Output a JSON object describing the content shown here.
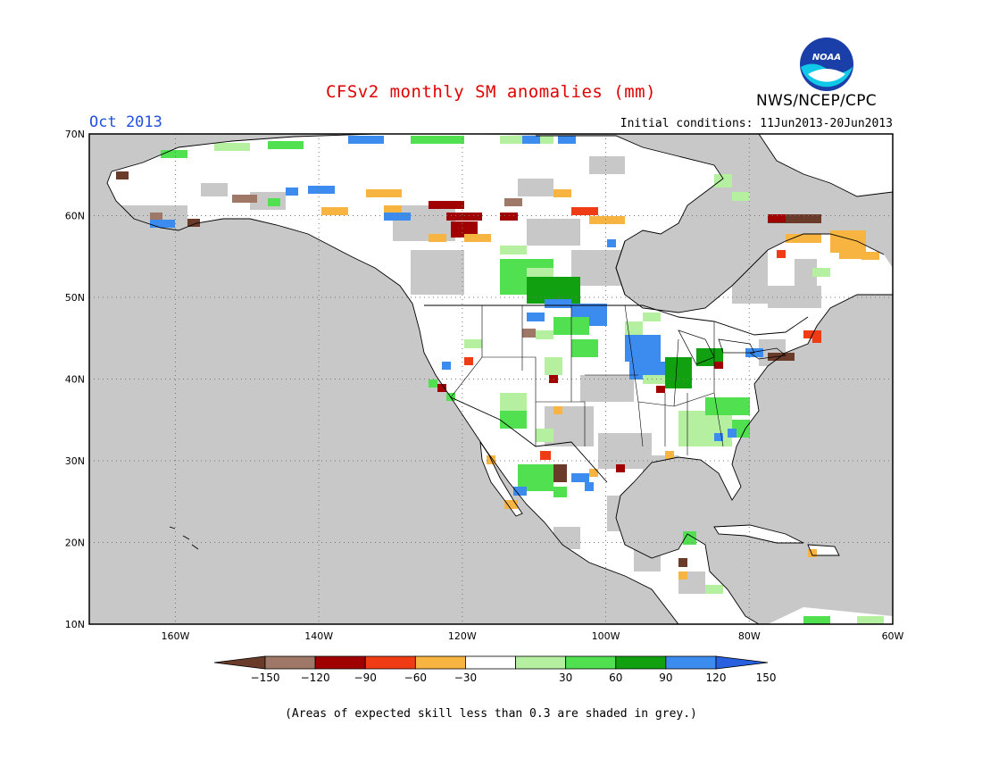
{
  "header": {
    "title": "CFSv2 monthly SM anomalies (mm)",
    "month": "Oct 2013",
    "initial_conditions": "Initial conditions: 11Jun2013-20Jun2013",
    "agency": "NWS/NCEP/CPC",
    "logo_text": "NOAA"
  },
  "map": {
    "lat_labels": [
      "70N",
      "60N",
      "50N",
      "40N",
      "30N",
      "20N",
      "10N"
    ],
    "lon_labels": [
      "160W",
      "140W",
      "120W",
      "100W",
      "80W",
      "60W"
    ],
    "lat_range": [
      10,
      70
    ],
    "lon_range": [
      -172,
      -60
    ],
    "grid": "dotted",
    "colors": {
      "ocean": "#c8c8c8",
      "land": "#ffffff",
      "low_skill": "#c8c8c8"
    }
  },
  "colorbar": {
    "labels": [
      "-150",
      "-120",
      "-90",
      "-60",
      "-30",
      "30",
      "60",
      "90",
      "120",
      "150"
    ],
    "colors": [
      "#6b3b2a",
      "#a07868",
      "#a00000",
      "#f03c14",
      "#f8b440",
      "#ffffff",
      "#b4f0a0",
      "#50e050",
      "#10a010",
      "#3c8cf0",
      "#2860e0"
    ]
  },
  "footnote": "(Areas of expected skill less than 0.3 are shaded in grey.)"
}
